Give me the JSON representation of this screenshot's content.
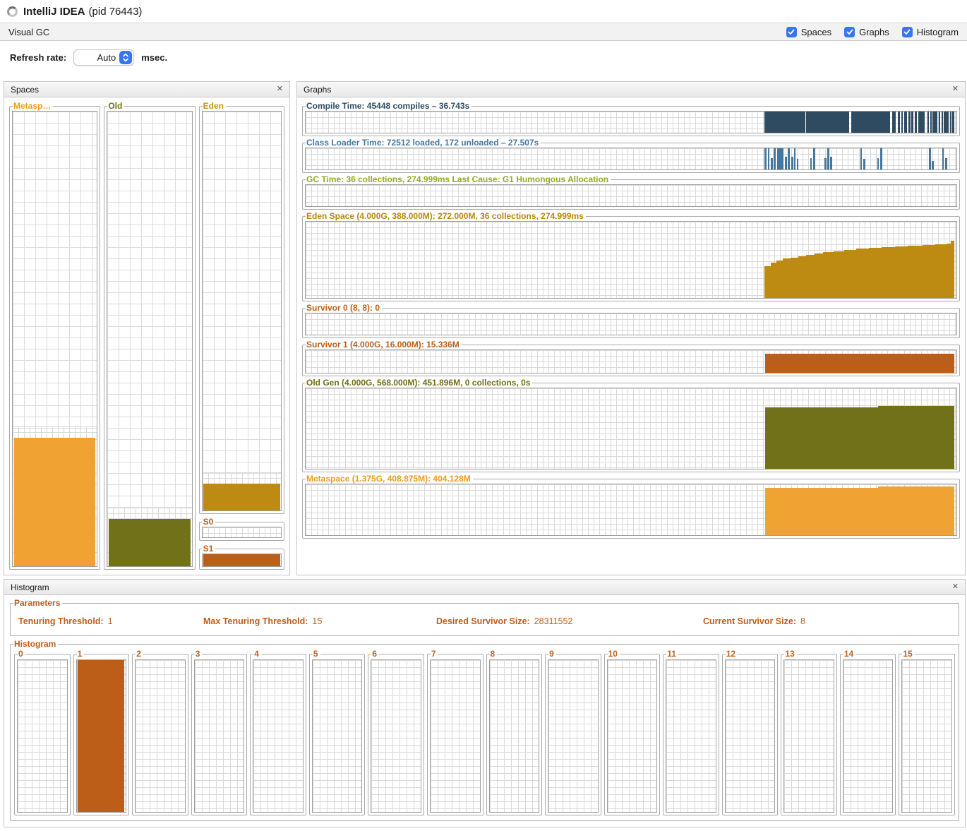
{
  "window": {
    "title": "IntelliJ IDEA",
    "subtitle": "(pid 76443)"
  },
  "tabbar": {
    "tab_label": "Visual GC",
    "toggles": [
      {
        "label": "Spaces",
        "checked": true
      },
      {
        "label": "Graphs",
        "checked": true
      },
      {
        "label": "Histogram",
        "checked": true
      }
    ]
  },
  "refresh": {
    "label": "Refresh rate:",
    "value": "Auto",
    "unit": "msec."
  },
  "panels": {
    "spaces": {
      "title": "Spaces",
      "close": "✕",
      "groups": {
        "metaspace": {
          "label": "Metasp…",
          "label_color": "#F09A20",
          "plot": {
            "color": "#F0A233",
            "band": true,
            "bars": [
              {
                "x": 0.02,
                "w": 0.96,
                "h": 0.283
              }
            ]
          }
        },
        "old": {
          "label": "Old",
          "label_color": "#6F7016",
          "plot": {
            "color": "#71711A",
            "band": true,
            "bars": [
              {
                "x": 0.012,
                "w": 0.976,
                "h": 0.104
              }
            ]
          }
        },
        "eden": {
          "label": "Eden",
          "label_color": "#C8930B",
          "plot": {
            "color": "#BE8B12",
            "band": true,
            "bars": [
              {
                "x": 0.012,
                "w": 0.976,
                "h": 0.068
              }
            ]
          }
        },
        "s0": {
          "label": "S0",
          "label_color": "#BC5E17",
          "plot": {
            "color": "#BC5E17",
            "bars": []
          }
        },
        "s1": {
          "label": "S1",
          "label_color": "#BC5E17",
          "plot": {
            "color": "#BC5E17",
            "bars": [
              {
                "x": 0.012,
                "w": 0.976,
                "h": 1
              }
            ]
          }
        }
      }
    },
    "graphs": {
      "title": "Graphs",
      "close": "✕",
      "charts": [
        {
          "id": "compile",
          "title": "Compile Time: 45448 compiles – 36.743s",
          "title_color": "#2E4B61",
          "plot": {
            "color": "#2E4B61",
            "bars": [
              {
                "x": 0.7055,
                "w": 0.062,
                "h": 1
              },
              {
                "x": 0.769,
                "w": 0.066,
                "h": 1
              },
              {
                "x": 0.838,
                "w": 0.06,
                "h": 1
              },
              {
                "x": 0.901,
                "w": 0.006,
                "h": 1
              },
              {
                "x": 0.91,
                "w": 0.003,
                "h": 1
              },
              {
                "x": 0.915,
                "w": 0.003,
                "h": 1
              },
              {
                "x": 0.92,
                "w": 0.004,
                "h": 1
              },
              {
                "x": 0.926,
                "w": 0.003,
                "h": 1
              },
              {
                "x": 0.931,
                "w": 0.003,
                "h": 1
              },
              {
                "x": 0.936,
                "w": 0.003,
                "h": 1
              },
              {
                "x": 0.941,
                "w": 0.01,
                "h": 1
              },
              {
                "x": 0.955,
                "w": 0.003,
                "h": 1
              },
              {
                "x": 0.96,
                "w": 0.002,
                "h": 1
              },
              {
                "x": 0.963,
                "w": 0.008,
                "h": 1
              },
              {
                "x": 0.973,
                "w": 0.002,
                "h": 1
              },
              {
                "x": 0.977,
                "w": 0.002,
                "h": 1
              },
              {
                "x": 0.981,
                "w": 0.007,
                "h": 1
              },
              {
                "x": 0.99,
                "w": 0.002,
                "h": 1
              },
              {
                "x": 0.993,
                "w": 0.004,
                "h": 1
              }
            ]
          }
        },
        {
          "id": "classloader",
          "title": "Class Loader Time: 72512 loaded, 172 unloaded – 27.507s",
          "title_color": "#45779E",
          "plot": {
            "color": "#45779E",
            "bar_w": 0.003,
            "bars": [
              {
                "x": 0.7055,
                "h": 1
              },
              {
                "x": 0.71,
                "h": 1
              },
              {
                "x": 0.7145,
                "h": 0.55
              },
              {
                "x": 0.719,
                "h": 1
              },
              {
                "x": 0.724,
                "w": 0.01,
                "h": 1
              },
              {
                "x": 0.7365,
                "h": 0.6
              },
              {
                "x": 0.741,
                "h": 1
              },
              {
                "x": 0.746,
                "h": 0.6
              },
              {
                "x": 0.75,
                "h": 1
              },
              {
                "x": 0.7545,
                "h": 0.5
              },
              {
                "x": 0.775,
                "h": 0.55
              },
              {
                "x": 0.78,
                "h": 1
              },
              {
                "x": 0.797,
                "h": 0.55
              },
              {
                "x": 0.8015,
                "h": 1
              },
              {
                "x": 0.806,
                "h": 0.6
              },
              {
                "x": 0.852,
                "h": 1
              },
              {
                "x": 0.857,
                "h": 0.5
              },
              {
                "x": 0.878,
                "h": 0.55
              },
              {
                "x": 0.883,
                "h": 1
              },
              {
                "x": 0.958,
                "h": 1
              },
              {
                "x": 0.9625,
                "h": 0.4
              },
              {
                "x": 0.978,
                "h": 1
              },
              {
                "x": 0.9825,
                "h": 0.55
              }
            ]
          }
        },
        {
          "id": "gctime",
          "title": "GC Time: 36 collections, 274.999ms Last Cause: G1 Humongous Allocation",
          "title_color": "#95A822",
          "plot": {
            "color": "#95A822",
            "bars": []
          }
        },
        {
          "id": "eden",
          "title": "Eden Space (4.000G, 388.000M): 272.000M, 36 collections, 274.999ms",
          "title_color": "#B8860B",
          "plot": {
            "color": "#BE8B12",
            "bars": [
              {
                "x": 0.705,
                "w": 0.01,
                "h": 0.42
              },
              {
                "x": 0.715,
                "w": 0.0085,
                "h": 0.46
              },
              {
                "x": 0.7235,
                "w": 0.01,
                "h": 0.49
              },
              {
                "x": 0.7335,
                "w": 0.012,
                "h": 0.515
              },
              {
                "x": 0.7455,
                "w": 0.012,
                "h": 0.53
              },
              {
                "x": 0.7575,
                "w": 0.012,
                "h": 0.55
              },
              {
                "x": 0.7695,
                "w": 0.012,
                "h": 0.565
              },
              {
                "x": 0.7815,
                "w": 0.014,
                "h": 0.58
              },
              {
                "x": 0.7955,
                "w": 0.016,
                "h": 0.6
              },
              {
                "x": 0.8115,
                "w": 0.016,
                "h": 0.615
              },
              {
                "x": 0.8275,
                "w": 0.018,
                "h": 0.63
              },
              {
                "x": 0.8455,
                "w": 0.02,
                "h": 0.645
              },
              {
                "x": 0.8655,
                "w": 0.02,
                "h": 0.655
              },
              {
                "x": 0.8855,
                "w": 0.02,
                "h": 0.665
              },
              {
                "x": 0.9055,
                "w": 0.02,
                "h": 0.675
              },
              {
                "x": 0.9255,
                "w": 0.022,
                "h": 0.685
              },
              {
                "x": 0.9475,
                "w": 0.02,
                "h": 0.695
              },
              {
                "x": 0.9675,
                "w": 0.017,
                "h": 0.705
              },
              {
                "x": 0.9845,
                "w": 0.007,
                "h": 0.715
              },
              {
                "x": 0.9915,
                "w": 0.0055,
                "h": 0.75
              }
            ]
          }
        },
        {
          "id": "s0",
          "title": "Survivor 0 (8, 8): 0",
          "title_color": "#BC5E17",
          "plot": {
            "color": "#BC5E17",
            "bars": []
          }
        },
        {
          "id": "s1",
          "title": "Survivor 1 (4.000G, 16.000M): 15.336M",
          "title_color": "#BC5E17",
          "plot": {
            "color": "#BC5E17",
            "bars": [
              {
                "x": 0.706,
                "w": 0.291,
                "h": 0.85
              }
            ]
          }
        },
        {
          "id": "old",
          "title": "Old Gen (4.000G, 568.000M): 451.896M, 0 collections, 0s",
          "title_color": "#6F7016",
          "plot": {
            "color": "#71711A",
            "bars": [
              {
                "x": 0.706,
                "w": 0.174,
                "h": 0.76
              },
              {
                "x": 0.88,
                "w": 0.117,
                "h": 0.785
              }
            ]
          }
        },
        {
          "id": "metaspace",
          "title": "Metaspace (1.375G, 408.875M): 404.128M",
          "title_color": "#EE9A1C",
          "plot": {
            "color": "#F0A233",
            "bars": [
              {
                "x": 0.706,
                "w": 0.174,
                "h": 0.925
              },
              {
                "x": 0.88,
                "w": 0.117,
                "h": 0.955
              }
            ]
          }
        }
      ]
    },
    "histogram": {
      "title": "Histogram",
      "close": "✕",
      "parameters": {
        "title": "Parameters",
        "title_color": "#BE5D1A",
        "items": [
          {
            "label": "Tenuring Threshold:",
            "value": "1"
          },
          {
            "label": "Max Tenuring Threshold:",
            "value": "15"
          },
          {
            "label": "Desired Survivor Size:",
            "value": "28311552"
          },
          {
            "label": "Current Survivor Size:",
            "value": "8"
          }
        ]
      },
      "bins_group": {
        "title": "Histogram",
        "title_color": "#BE5D1A",
        "label_color": "#C2611B",
        "bar_color": "#BC5E17",
        "bins": [
          {
            "label": "0",
            "fill": 0
          },
          {
            "label": "1",
            "fill": 1
          },
          {
            "label": "2",
            "fill": 0
          },
          {
            "label": "3",
            "fill": 0
          },
          {
            "label": "4",
            "fill": 0
          },
          {
            "label": "5",
            "fill": 0
          },
          {
            "label": "6",
            "fill": 0
          },
          {
            "label": "7",
            "fill": 0
          },
          {
            "label": "8",
            "fill": 0
          },
          {
            "label": "9",
            "fill": 0
          },
          {
            "label": "10",
            "fill": 0
          },
          {
            "label": "11",
            "fill": 0
          },
          {
            "label": "12",
            "fill": 0
          },
          {
            "label": "13",
            "fill": 0
          },
          {
            "label": "14",
            "fill": 0
          },
          {
            "label": "15",
            "fill": 0
          }
        ]
      }
    }
  }
}
